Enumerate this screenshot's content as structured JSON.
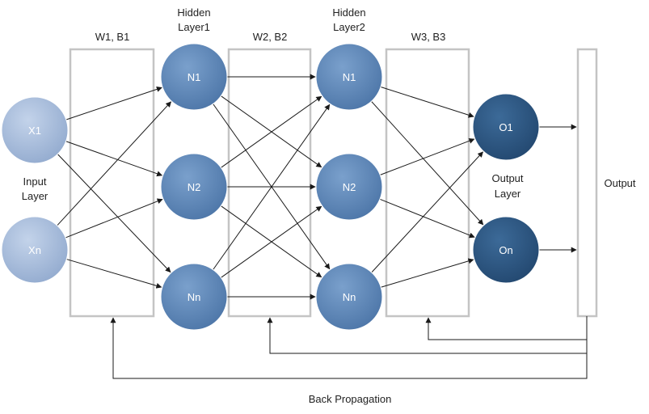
{
  "layers": {
    "input": {
      "label_lines": [
        "Input",
        "Layer"
      ],
      "nodes": [
        "X1",
        "Xn"
      ]
    },
    "hidden1": {
      "label_lines": [
        "Hidden",
        "Layer1"
      ],
      "nodes": [
        "N1",
        "N2",
        "Nn"
      ]
    },
    "hidden2": {
      "label_lines": [
        "Hidden",
        "Layer2"
      ],
      "nodes": [
        "N1",
        "N2",
        "Nn"
      ]
    },
    "output": {
      "label_lines": [
        "Output",
        "Layer"
      ],
      "nodes": [
        "O1",
        "On"
      ]
    }
  },
  "weights": [
    "W1, B1",
    "W2, B2",
    "W3, B3"
  ],
  "output_label": "Output",
  "backprop_label": "Back Propagation",
  "colors": {
    "input_node": "#a9bdd9",
    "hidden_node": "#5b86b8",
    "output_node": "#2d5680",
    "box_stroke": "#c4c4c4",
    "line": "#1a1a1a"
  }
}
